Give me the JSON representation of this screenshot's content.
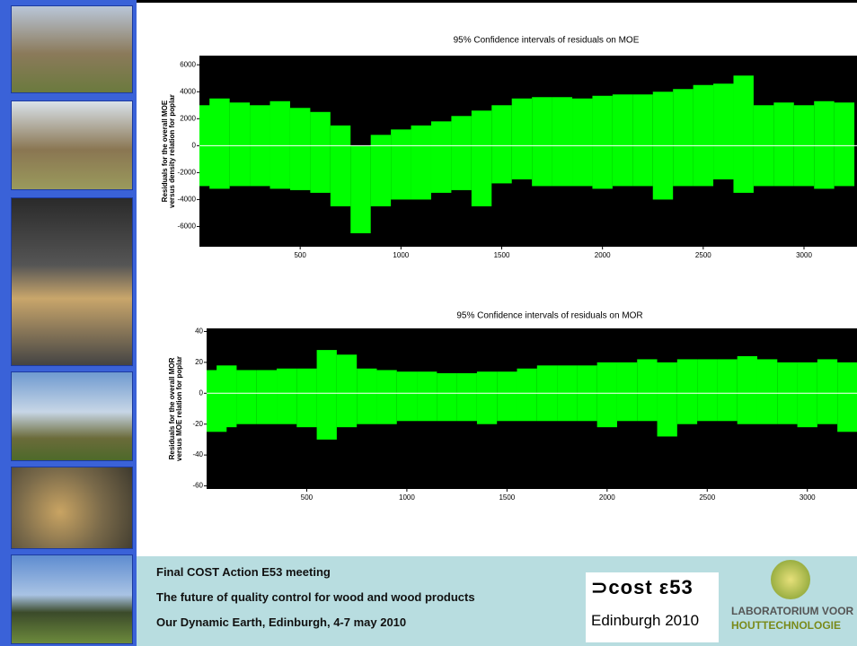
{
  "chart_data": [
    {
      "type": "range",
      "title": "95% Confidence intervals of residuals on MOE",
      "ylabel": [
        "Residuals for the overall MOE",
        "versus density relation for poplar"
      ],
      "color": "#00ff00",
      "background": "#000000",
      "x": [
        0,
        100,
        200,
        300,
        400,
        500,
        600,
        700,
        800,
        900,
        1000,
        1100,
        1200,
        1300,
        1400,
        1500,
        1600,
        1700,
        1800,
        1900,
        2000,
        2100,
        2200,
        2300,
        2400,
        2500,
        2600,
        2700,
        2800,
        2900,
        3000,
        3100,
        3200
      ],
      "upper": [
        3000,
        3500,
        3200,
        3000,
        3300,
        2800,
        2500,
        1500,
        0,
        800,
        1200,
        1500,
        1800,
        2200,
        2600,
        3000,
        3500,
        3600,
        3600,
        3500,
        3700,
        3800,
        3800,
        4000,
        4200,
        4500,
        4600,
        5200,
        3000,
        3200,
        3000,
        3300,
        3200
      ],
      "lower": [
        -3000,
        -3200,
        -3000,
        -3000,
        -3200,
        -3300,
        -3500,
        -4500,
        -6500,
        -4500,
        -4000,
        -4000,
        -3500,
        -3300,
        -4500,
        -2800,
        -2500,
        -3000,
        -3000,
        -3000,
        -3200,
        -3000,
        -3000,
        -4000,
        -3000,
        -3000,
        -2500,
        -3500,
        -3000,
        -3000,
        -3000,
        -3200,
        -3000
      ],
      "xlim": [
        0,
        3263
      ],
      "ylim": [
        -7500,
        6680
      ],
      "xticks": [
        500,
        1000,
        1500,
        2000,
        2500,
        3000
      ],
      "yticks": [
        -6000,
        -4000,
        -2000,
        0,
        2000,
        4000,
        6000
      ]
    },
    {
      "type": "range",
      "title": "95% Confidence intervals of residuals on MOR",
      "ylabel": [
        "Residuals for the overall MOR",
        "versus MOE relation for poplar"
      ],
      "color": "#00ff00",
      "background": "#000000",
      "x": [
        0,
        100,
        200,
        300,
        400,
        500,
        600,
        700,
        800,
        900,
        1000,
        1100,
        1200,
        1300,
        1400,
        1500,
        1600,
        1700,
        1800,
        1900,
        2000,
        2100,
        2200,
        2300,
        2400,
        2500,
        2600,
        2700,
        2800,
        2900,
        3000,
        3100,
        3200
      ],
      "upper": [
        15,
        18,
        15,
        15,
        16,
        16,
        28,
        25,
        16,
        15,
        14,
        14,
        13,
        13,
        14,
        14,
        16,
        18,
        18,
        18,
        20,
        20,
        22,
        20,
        22,
        22,
        22,
        24,
        22,
        20,
        20,
        22,
        20
      ],
      "lower": [
        -25,
        -22,
        -20,
        -20,
        -20,
        -22,
        -30,
        -22,
        -20,
        -20,
        -18,
        -18,
        -18,
        -18,
        -20,
        -18,
        -18,
        -18,
        -18,
        -18,
        -22,
        -18,
        -18,
        -28,
        -20,
        -18,
        -18,
        -20,
        -20,
        -20,
        -22,
        -20,
        -25
      ],
      "xlim": [
        0,
        3248
      ],
      "ylim": [
        -62,
        42
      ],
      "xticks": [
        500,
        1000,
        1500,
        2000,
        2500,
        3000
      ],
      "yticks": [
        -60,
        -40,
        -20,
        0,
        20,
        40
      ]
    }
  ],
  "footer": {
    "lines": [
      "Final COST Action E53 meeting",
      "The future of quality control for wood and wood products",
      "Our Dynamic Earth, Edinburgh, 4-7 may 2010"
    ],
    "cost_logo": [
      "⊃cost ε53",
      "Edinburgh 2010"
    ],
    "lab_logo": [
      "LABORATORIUM VOOR",
      "HOUTTECHNOLOGIE"
    ]
  }
}
